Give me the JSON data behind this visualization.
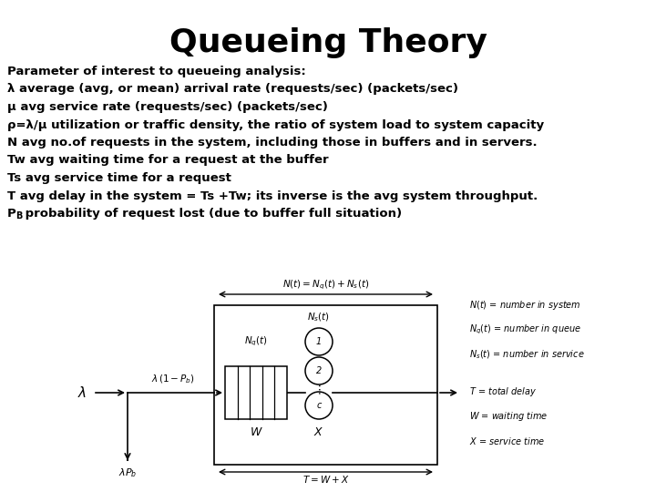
{
  "title": "Queueing Theory",
  "title_fontsize": 26,
  "title_fontweight": "bold",
  "body_lines": [
    "Parameter of interest to queueing analysis:",
    "λ average (avg, or mean) arrival rate (requests/sec) (packets/sec)",
    "μ avg service rate (requests/sec) (packets/sec)",
    "ρ=λ/μ utilization or traffic density, the ratio of system load to system capacity",
    "N avg no.of requests in the system, including those in buffers and in servers.",
    "Tw avg waiting time for a request at the buffer",
    "Ts avg service time for a request",
    "T avg delay in the system = Ts +Tw; its inverse is the avg system throughput.",
    "P_B probability of request lost (due to buffer full situation)"
  ],
  "body_fontsize": 9.5,
  "background_color": "#ffffff",
  "text_color": "#000000"
}
